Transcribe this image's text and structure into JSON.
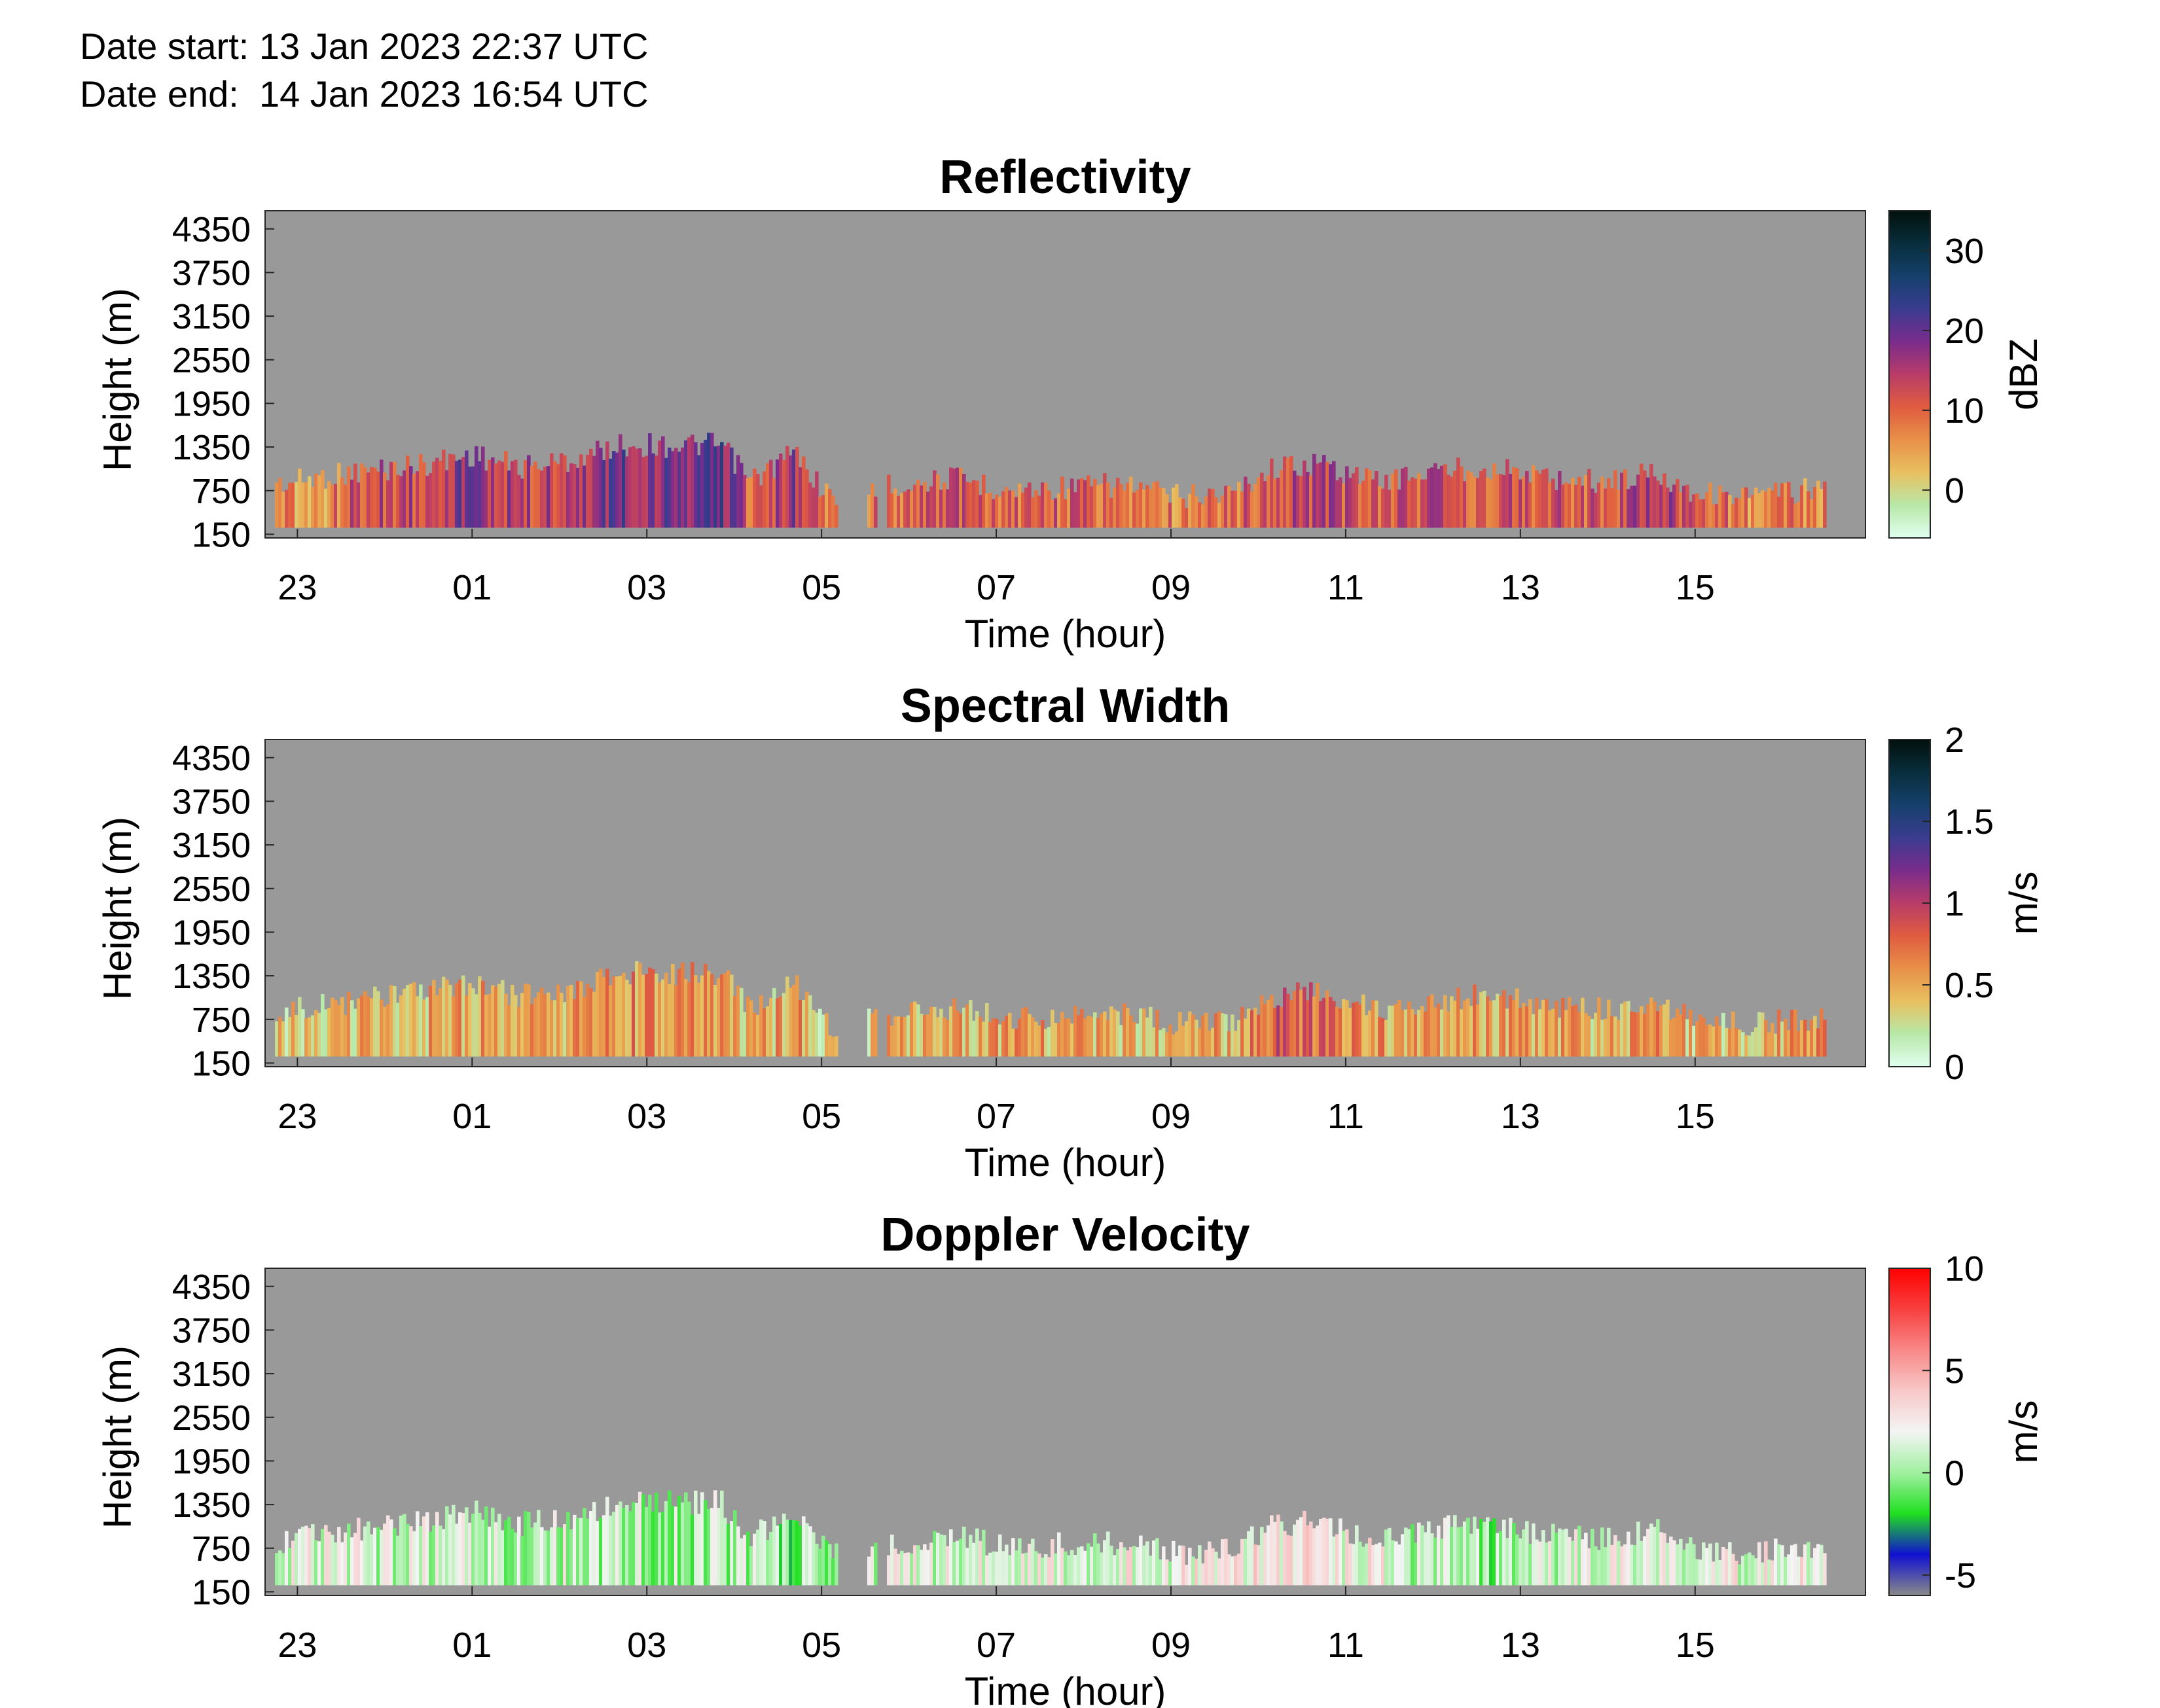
{
  "header": {
    "date_start": "Date start: 13 Jan 2023 22:37 UTC",
    "date_end": "Date end:  14 Jan 2023 16:54 UTC"
  },
  "colors": {
    "no_data": "#999999",
    "axis": "#262626"
  },
  "chart_data": [
    {
      "type": "heatmap",
      "title": "Reflectivity",
      "xlabel": "Time (hour)",
      "ylabel": "Height (m)",
      "colorbar_label": "dBZ",
      "x_ticks": [
        "23",
        "01",
        "03",
        "05",
        "07",
        "09",
        "11",
        "13",
        "15"
      ],
      "x_range_hours": [
        22.63,
        16.95
      ],
      "y_ticks": [
        150,
        750,
        1350,
        1950,
        2550,
        3150,
        3750,
        4350
      ],
      "y_range": [
        100,
        4600
      ],
      "colorbar_ticks": [
        0,
        10,
        20,
        30
      ],
      "colorbar_range": [
        -6,
        35
      ],
      "colormap": [
        "#e0fff0",
        "#b8e8a8",
        "#e8c060",
        "#e89048",
        "#e05c40",
        "#b83c68",
        "#7a2c8c",
        "#3a3c90",
        "#16406c",
        "#082e3c",
        "#02100c"
      ],
      "echo_profile": [
        {
          "t": "22:50",
          "top_m": 1020,
          "value": 6
        },
        {
          "t": "23:10",
          "top_m": 1100,
          "value": 4
        },
        {
          "t": "23:40",
          "top_m": 1180,
          "value": 12
        },
        {
          "t": "00:20",
          "top_m": 1270,
          "value": 14
        },
        {
          "t": "01:00",
          "top_m": 1420,
          "value": 18
        },
        {
          "t": "01:30",
          "top_m": 1250,
          "value": 13
        },
        {
          "t": "02:10",
          "top_m": 1350,
          "value": 14
        },
        {
          "t": "02:40",
          "top_m": 1550,
          "value": 19
        },
        {
          "t": "03:10",
          "top_m": 1550,
          "value": 17
        },
        {
          "t": "03:50",
          "top_m": 1550,
          "value": 21
        },
        {
          "t": "04:10",
          "top_m": 1050,
          "value": 10
        },
        {
          "t": "04:40",
          "top_m": 1450,
          "value": 16
        },
        {
          "t": "05:05",
          "top_m": 820,
          "value": 5
        },
        {
          "t": "05:50",
          "top_m": 1000,
          "value": 10
        },
        {
          "t": "06:30",
          "top_m": 1100,
          "value": 11
        },
        {
          "t": "07:10",
          "top_m": 920,
          "value": 10
        },
        {
          "t": "07:50",
          "top_m": 980,
          "value": 10
        },
        {
          "t": "08:30",
          "top_m": 1000,
          "value": 9
        },
        {
          "t": "09:00",
          "top_m": 850,
          "value": 8
        },
        {
          "t": "09:40",
          "top_m": 900,
          "value": 9
        },
        {
          "t": "10:10",
          "top_m": 1250,
          "value": 14
        },
        {
          "t": "10:40",
          "top_m": 1300,
          "value": 14
        },
        {
          "t": "11:20",
          "top_m": 1050,
          "value": 11
        },
        {
          "t": "12:00",
          "top_m": 1200,
          "value": 12
        },
        {
          "t": "12:40",
          "top_m": 1250,
          "value": 12
        },
        {
          "t": "13:20",
          "top_m": 1100,
          "value": 11
        },
        {
          "t": "14:00",
          "top_m": 1050,
          "value": 11
        },
        {
          "t": "14:30",
          "top_m": 1180,
          "value": 17
        },
        {
          "t": "15:00",
          "top_m": 900,
          "value": 10
        },
        {
          "t": "15:40",
          "top_m": 850,
          "value": 7
        },
        {
          "t": "16:20",
          "top_m": 950,
          "value": 8
        }
      ]
    },
    {
      "type": "heatmap",
      "title": "Spectral Width",
      "xlabel": "Time (hour)",
      "ylabel": "Height (m)",
      "colorbar_label": "m/s",
      "x_ticks": [
        "23",
        "01",
        "03",
        "05",
        "07",
        "09",
        "11",
        "13",
        "15"
      ],
      "x_range_hours": [
        22.63,
        16.95
      ],
      "y_ticks": [
        150,
        750,
        1350,
        1950,
        2550,
        3150,
        3750,
        4350
      ],
      "y_range": [
        100,
        4600
      ],
      "colorbar_ticks": [
        0,
        0.5,
        1,
        1.5,
        2
      ],
      "colorbar_ticklabels": [
        "0",
        "0.5",
        "1",
        "1.5",
        "2"
      ],
      "colorbar_range": [
        0,
        2
      ],
      "colormap": [
        "#e0fff0",
        "#b8e8a8",
        "#e8c060",
        "#e89048",
        "#e05c40",
        "#b83c68",
        "#7a2c8c",
        "#3a3c90",
        "#16406c",
        "#082e3c",
        "#02100c"
      ],
      "echo_profile": [
        {
          "t": "22:50",
          "top_m": 1020,
          "value": 0.35
        },
        {
          "t": "23:10",
          "top_m": 1100,
          "value": 0.3
        },
        {
          "t": "23:40",
          "top_m": 1180,
          "value": 0.45
        },
        {
          "t": "00:20",
          "top_m": 1270,
          "value": 0.45
        },
        {
          "t": "01:00",
          "top_m": 1420,
          "value": 0.5
        },
        {
          "t": "01:30",
          "top_m": 1250,
          "value": 0.45
        },
        {
          "t": "02:10",
          "top_m": 1350,
          "value": 0.5
        },
        {
          "t": "02:40",
          "top_m": 1550,
          "value": 0.6
        },
        {
          "t": "03:10",
          "top_m": 1550,
          "value": 0.55
        },
        {
          "t": "03:50",
          "top_m": 1550,
          "value": 0.5
        },
        {
          "t": "04:10",
          "top_m": 1050,
          "value": 0.4
        },
        {
          "t": "04:40",
          "top_m": 1450,
          "value": 0.55
        },
        {
          "t": "05:05",
          "top_m": 820,
          "value": 0.3
        },
        {
          "t": "05:50",
          "top_m": 1000,
          "value": 0.45
        },
        {
          "t": "06:30",
          "top_m": 1100,
          "value": 0.5
        },
        {
          "t": "07:10",
          "top_m": 920,
          "value": 0.5
        },
        {
          "t": "07:50",
          "top_m": 980,
          "value": 0.5
        },
        {
          "t": "08:30",
          "top_m": 1000,
          "value": 0.45
        },
        {
          "t": "09:00",
          "top_m": 850,
          "value": 0.4
        },
        {
          "t": "09:40",
          "top_m": 900,
          "value": 0.5
        },
        {
          "t": "10:10",
          "top_m": 1250,
          "value": 0.85
        },
        {
          "t": "10:40",
          "top_m": 1300,
          "value": 0.75
        },
        {
          "t": "11:20",
          "top_m": 1050,
          "value": 0.55
        },
        {
          "t": "12:00",
          "top_m": 1200,
          "value": 0.5
        },
        {
          "t": "12:40",
          "top_m": 1250,
          "value": 0.55
        },
        {
          "t": "13:20",
          "top_m": 1100,
          "value": 0.5
        },
        {
          "t": "14:00",
          "top_m": 1050,
          "value": 0.45
        },
        {
          "t": "14:30",
          "top_m": 1180,
          "value": 0.6
        },
        {
          "t": "15:00",
          "top_m": 900,
          "value": 0.4
        },
        {
          "t": "15:40",
          "top_m": 850,
          "value": 0.4
        },
        {
          "t": "16:20",
          "top_m": 950,
          "value": 0.55
        }
      ]
    },
    {
      "type": "heatmap",
      "title": "Doppler Velocity",
      "xlabel": "Time (hour)",
      "ylabel": "Height (m)",
      "colorbar_label": "m/s",
      "x_ticks": [
        "23",
        "01",
        "03",
        "05",
        "07",
        "09",
        "11",
        "13",
        "15"
      ],
      "x_range_hours": [
        22.63,
        16.95
      ],
      "y_ticks": [
        150,
        750,
        1350,
        1950,
        2550,
        3150,
        3750,
        4350
      ],
      "y_range": [
        100,
        4600
      ],
      "colorbar_ticks": [
        -5,
        0,
        5,
        10
      ],
      "colorbar_range": [
        -6,
        10
      ],
      "colormap": [
        "#8a8a8a",
        "#1010d0",
        "#20e020",
        "#a0f0a0",
        "#f4f4f4",
        "#f8c8c8",
        "#f88888",
        "#f84040",
        "#ff0000"
      ],
      "echo_profile": [
        {
          "t": "22:50",
          "top_m": 1020,
          "value": 1.5
        },
        {
          "t": "23:10",
          "top_m": 1100,
          "value": 1.5
        },
        {
          "t": "23:40",
          "top_m": 1180,
          "value": 1.2
        },
        {
          "t": "00:20",
          "top_m": 1270,
          "value": 1.0
        },
        {
          "t": "01:00",
          "top_m": 1420,
          "value": 1.0
        },
        {
          "t": "01:30",
          "top_m": 1250,
          "value": 0.8
        },
        {
          "t": "02:10",
          "top_m": 1350,
          "value": 0.8
        },
        {
          "t": "02:40",
          "top_m": 1550,
          "value": 0.5
        },
        {
          "t": "03:10",
          "top_m": 1550,
          "value": 0.6
        },
        {
          "t": "03:50",
          "top_m": 1550,
          "value": 0.2
        },
        {
          "t": "04:10",
          "top_m": 1050,
          "value": 0.5
        },
        {
          "t": "04:40",
          "top_m": 1450,
          "value": -0.5
        },
        {
          "t": "05:05",
          "top_m": 820,
          "value": 0.8
        },
        {
          "t": "05:50",
          "top_m": 1000,
          "value": 1.5
        },
        {
          "t": "06:30",
          "top_m": 1100,
          "value": 1.2
        },
        {
          "t": "07:10",
          "top_m": 920,
          "value": 1.8
        },
        {
          "t": "07:50",
          "top_m": 980,
          "value": 1.8
        },
        {
          "t": "08:30",
          "top_m": 1000,
          "value": 1.8
        },
        {
          "t": "09:00",
          "top_m": 850,
          "value": 2.0
        },
        {
          "t": "09:40",
          "top_m": 900,
          "value": 2.2
        },
        {
          "t": "10:10",
          "top_m": 1250,
          "value": 2.8
        },
        {
          "t": "10:40",
          "top_m": 1300,
          "value": 2.5
        },
        {
          "t": "11:20",
          "top_m": 1050,
          "value": 1.8
        },
        {
          "t": "12:00",
          "top_m": 1200,
          "value": 0.4
        },
        {
          "t": "12:40",
          "top_m": 1250,
          "value": 0.0
        },
        {
          "t": "13:20",
          "top_m": 1100,
          "value": 1.0
        },
        {
          "t": "14:00",
          "top_m": 1050,
          "value": 1.2
        },
        {
          "t": "14:30",
          "top_m": 1180,
          "value": 1.6
        },
        {
          "t": "15:00",
          "top_m": 900,
          "value": 1.6
        },
        {
          "t": "15:40",
          "top_m": 850,
          "value": 1.8
        },
        {
          "t": "16:20",
          "top_m": 950,
          "value": 2.0
        }
      ]
    }
  ]
}
